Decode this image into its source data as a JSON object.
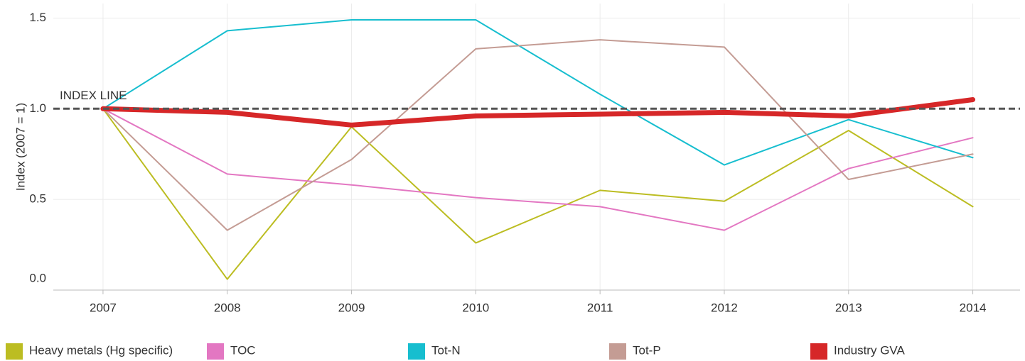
{
  "chart_data": {
    "type": "line",
    "y_label": "Index (2007 = 1)",
    "annotation": "INDEX LINE",
    "index_line": 1,
    "x": [
      2007,
      2008,
      2009,
      2010,
      2011,
      2012,
      2013,
      2014
    ],
    "xlim": [
      2006.6,
      2014.38
    ],
    "xticks": [
      2007,
      2008,
      2009,
      2010,
      2011,
      2012,
      2013,
      2014
    ],
    "ylim": [
      0,
      1.58
    ],
    "yticks": [
      {
        "value": 0,
        "label": "0.0"
      },
      0.5,
      {
        "value": 1,
        "label": "1.0"
      },
      1.5
    ],
    "grid": true,
    "legend": "bottom",
    "series": [
      {
        "name": "Heavy metals (Hg specific)",
        "color": "#bcbd22",
        "values": [
          1.0,
          0.06,
          0.9,
          0.26,
          0.55,
          0.49,
          0.88,
          0.46
        ]
      },
      {
        "name": "TOC",
        "color": "#e377c2",
        "values": [
          1.0,
          0.64,
          0.58,
          0.51,
          0.46,
          0.33,
          0.67,
          0.84
        ]
      },
      {
        "name": "Tot-N",
        "color": "#17becf",
        "values": [
          1.0,
          1.43,
          1.49,
          1.49,
          1.08,
          0.69,
          0.94,
          0.73
        ]
      },
      {
        "name": "Tot-P",
        "color": "#c49c94",
        "values": [
          1.0,
          0.33,
          0.72,
          1.33,
          1.38,
          1.34,
          0.61,
          0.75
        ]
      },
      {
        "name": "Industry GVA",
        "color": "#d62728",
        "values": [
          1.0,
          0.98,
          0.91,
          0.96,
          0.97,
          0.98,
          0.96,
          1.05
        ],
        "width": 7
      }
    ]
  }
}
